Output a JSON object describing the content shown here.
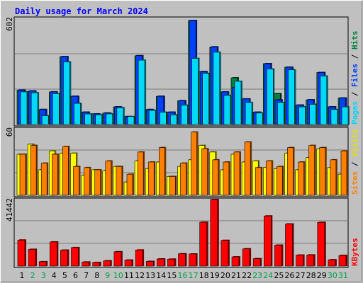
{
  "title": "Daily usage for March 2024",
  "colors": {
    "background": "#c0c0c0",
    "title": "#0000ff",
    "axis_text": "#000000",
    "pages": "#00d8f8",
    "files": "#0040ff",
    "hits": "#008040",
    "visits": "#ffff00",
    "sites": "#ff8000",
    "kbytes": "#ff0000",
    "weekend_label": "#00a050",
    "grid": "#6e6e6e"
  },
  "legend": {
    "top": {
      "pages": "Pages",
      "sep1": "/",
      "files": "Files",
      "sep2": "/",
      "hits": "Hits"
    },
    "mid": {
      "sites": "Sites",
      "sep": "/",
      "visits": "Visits"
    },
    "bot": {
      "kbytes": "KBytes"
    }
  },
  "chart_data": [
    {
      "type": "bar",
      "panel": "hits-files-pages",
      "scale_label": "602",
      "ylim": [
        0,
        602
      ],
      "categories": [
        "1",
        "2",
        "3",
        "4",
        "5",
        "6",
        "7",
        "8",
        "9",
        "10",
        "11",
        "12",
        "13",
        "14",
        "15",
        "16",
        "17",
        "18",
        "19",
        "20",
        "21",
        "22",
        "23",
        "24",
        "25",
        "26",
        "27",
        "28",
        "29",
        "30",
        "31"
      ],
      "series": [
        {
          "name": "Hits",
          "values": [
            195,
            190,
            85,
            185,
            385,
            160,
            70,
            60,
            65,
            100,
            45,
            390,
            85,
            160,
            70,
            135,
            590,
            300,
            440,
            185,
            265,
            145,
            70,
            345,
            175,
            325,
            110,
            140,
            295,
            100,
            150
          ]
        },
        {
          "name": "Files",
          "values": [
            195,
            190,
            85,
            185,
            385,
            160,
            70,
            60,
            65,
            100,
            45,
            390,
            85,
            160,
            70,
            135,
            590,
            300,
            440,
            185,
            210,
            145,
            70,
            345,
            140,
            325,
            110,
            140,
            295,
            100,
            150
          ]
        },
        {
          "name": "Pages",
          "values": [
            185,
            180,
            50,
            175,
            355,
            120,
            60,
            55,
            60,
            95,
            45,
            365,
            80,
            70,
            55,
            110,
            375,
            290,
            410,
            165,
            245,
            125,
            65,
            315,
            125,
            310,
            100,
            115,
            275,
            85,
            100
          ]
        }
      ]
    },
    {
      "type": "bar",
      "panel": "visits-sites",
      "scale_label": "60",
      "ylim": [
        0,
        60
      ],
      "categories": [
        "1",
        "2",
        "3",
        "4",
        "5",
        "6",
        "7",
        "8",
        "9",
        "10",
        "11",
        "12",
        "13",
        "14",
        "15",
        "16",
        "17",
        "18",
        "19",
        "20",
        "21",
        "22",
        "23",
        "24",
        "25",
        "26",
        "27",
        "28",
        "29",
        "30",
        "31"
      ],
      "series": [
        {
          "name": "Visits",
          "values": [
            37,
            46,
            23,
            40,
            38,
            38,
            18,
            23,
            22,
            26,
            12,
            31,
            24,
            30,
            17,
            26,
            32,
            45,
            39,
            23,
            37,
            30,
            31,
            25,
            24,
            38,
            23,
            34,
            42,
            25,
            19
          ]
        },
        {
          "name": "Sites",
          "values": [
            37,
            45,
            29,
            37,
            44,
            26,
            25,
            23,
            31,
            26,
            19,
            39,
            30,
            43,
            17,
            29,
            57,
            42,
            32,
            30,
            39,
            48,
            25,
            31,
            26,
            43,
            30,
            45,
            43,
            32,
            40
          ]
        }
      ]
    },
    {
      "type": "bar",
      "panel": "kbytes",
      "scale_label": "41442",
      "ylim": [
        0,
        41442
      ],
      "categories": [
        "1",
        "2",
        "3",
        "4",
        "5",
        "6",
        "7",
        "8",
        "9",
        "10",
        "11",
        "12",
        "13",
        "14",
        "15",
        "16",
        "17",
        "18",
        "19",
        "20",
        "21",
        "22",
        "23",
        "24",
        "25",
        "26",
        "27",
        "28",
        "29",
        "30",
        "31"
      ],
      "series": [
        {
          "name": "KBytes",
          "values": [
            16200,
            10400,
            2700,
            15000,
            9900,
            11500,
            2500,
            2200,
            3200,
            8900,
            3700,
            10000,
            2900,
            4400,
            4300,
            7600,
            7500,
            27300,
            41442,
            16000,
            5700,
            10700,
            4600,
            31200,
            13000,
            26200,
            6800,
            6900,
            27200,
            3900,
            6600
          ]
        }
      ]
    }
  ]
}
